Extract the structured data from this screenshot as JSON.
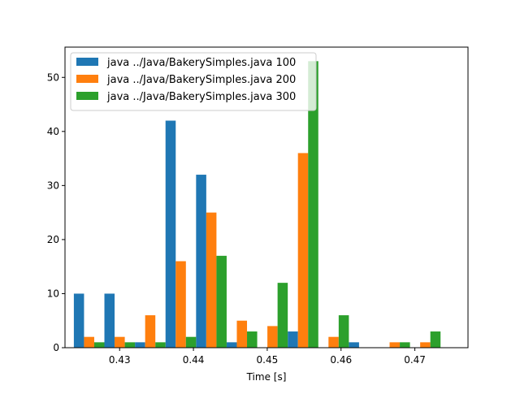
{
  "chart_data": {
    "type": "bar",
    "title": "",
    "xlabel": "Time [s]",
    "ylabel": "",
    "xlim": [
      0.4226,
      0.4772
    ],
    "ylim": [
      0,
      55.6
    ],
    "xticks": [
      0.43,
      0.44,
      0.45,
      0.46,
      0.47
    ],
    "xtick_labels": [
      "0.43",
      "0.44",
      "0.45",
      "0.46",
      "0.47"
    ],
    "yticks": [
      0,
      10,
      20,
      30,
      40,
      50
    ],
    "ytick_labels": [
      "0",
      "10",
      "20",
      "30",
      "40",
      "50"
    ],
    "bin_edges": [
      0.4238,
      0.42794,
      0.43208,
      0.43622,
      0.44036,
      0.4445,
      0.44864,
      0.45278,
      0.45692,
      0.46106,
      0.4652,
      0.46934,
      0.47348,
      0.47762
    ],
    "legend_position": "upper left",
    "grid": false,
    "series": [
      {
        "name": "java ../Java/BakerySimples.java 100",
        "color": "#1f77b4",
        "values": [
          10,
          10,
          1,
          42,
          32,
          1,
          0,
          3,
          0,
          1,
          0,
          0,
          0
        ]
      },
      {
        "name": "java ../Java/BakerySimples.java 200",
        "color": "#ff7f0e",
        "values": [
          2,
          2,
          6,
          16,
          25,
          5,
          4,
          36,
          2,
          0,
          1,
          1,
          0
        ]
      },
      {
        "name": "java ../Java/BakerySimples.java 300",
        "color": "#2ca02c",
        "values": [
          1,
          1,
          1,
          2,
          17,
          3,
          12,
          53,
          6,
          0,
          1,
          3,
          0
        ]
      }
    ]
  }
}
